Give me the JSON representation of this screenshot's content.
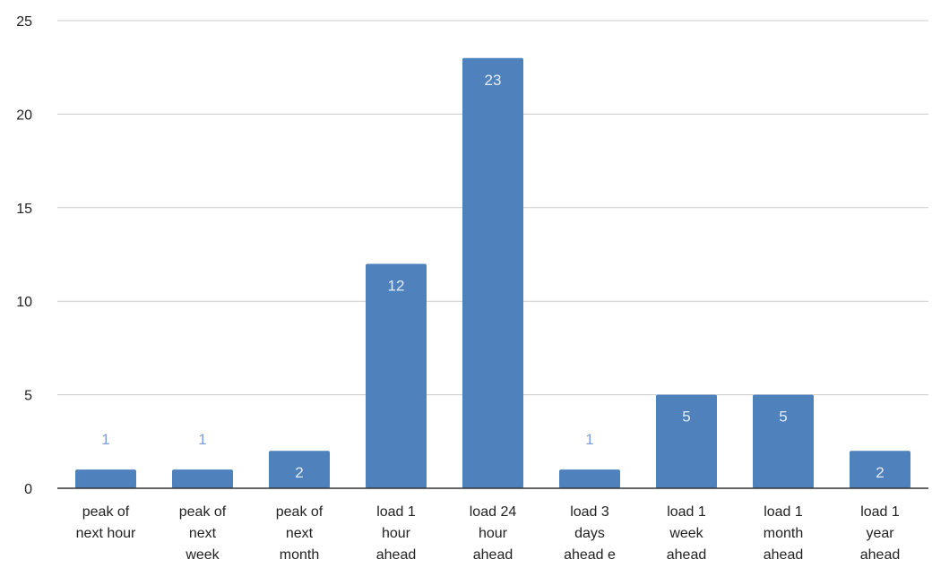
{
  "chart_data": {
    "type": "bar",
    "categories": [
      [
        "peak of",
        "next hour"
      ],
      [
        "peak of",
        "next",
        "week"
      ],
      [
        "peak of",
        "next",
        "month"
      ],
      [
        "load 1",
        "hour",
        "ahead"
      ],
      [
        "load 24",
        "hour",
        "ahead"
      ],
      [
        "load 3",
        "days",
        "ahead e"
      ],
      [
        "load 1",
        "week",
        "ahead"
      ],
      [
        "load 1",
        "month",
        "ahead"
      ],
      [
        "load 1",
        "year",
        "ahead"
      ]
    ],
    "values": [
      1,
      1,
      2,
      12,
      23,
      1,
      5,
      5,
      2
    ],
    "ylim": [
      0,
      25
    ],
    "yticks": [
      0,
      5,
      10,
      15,
      20,
      25
    ],
    "grid": true,
    "bar_color": "#4f81bd",
    "label_inside_color": "#e6ecf7",
    "label_outside_color": "#7a9fd8",
    "grid_color": "#cccccc",
    "axis_color": "#333333"
  }
}
